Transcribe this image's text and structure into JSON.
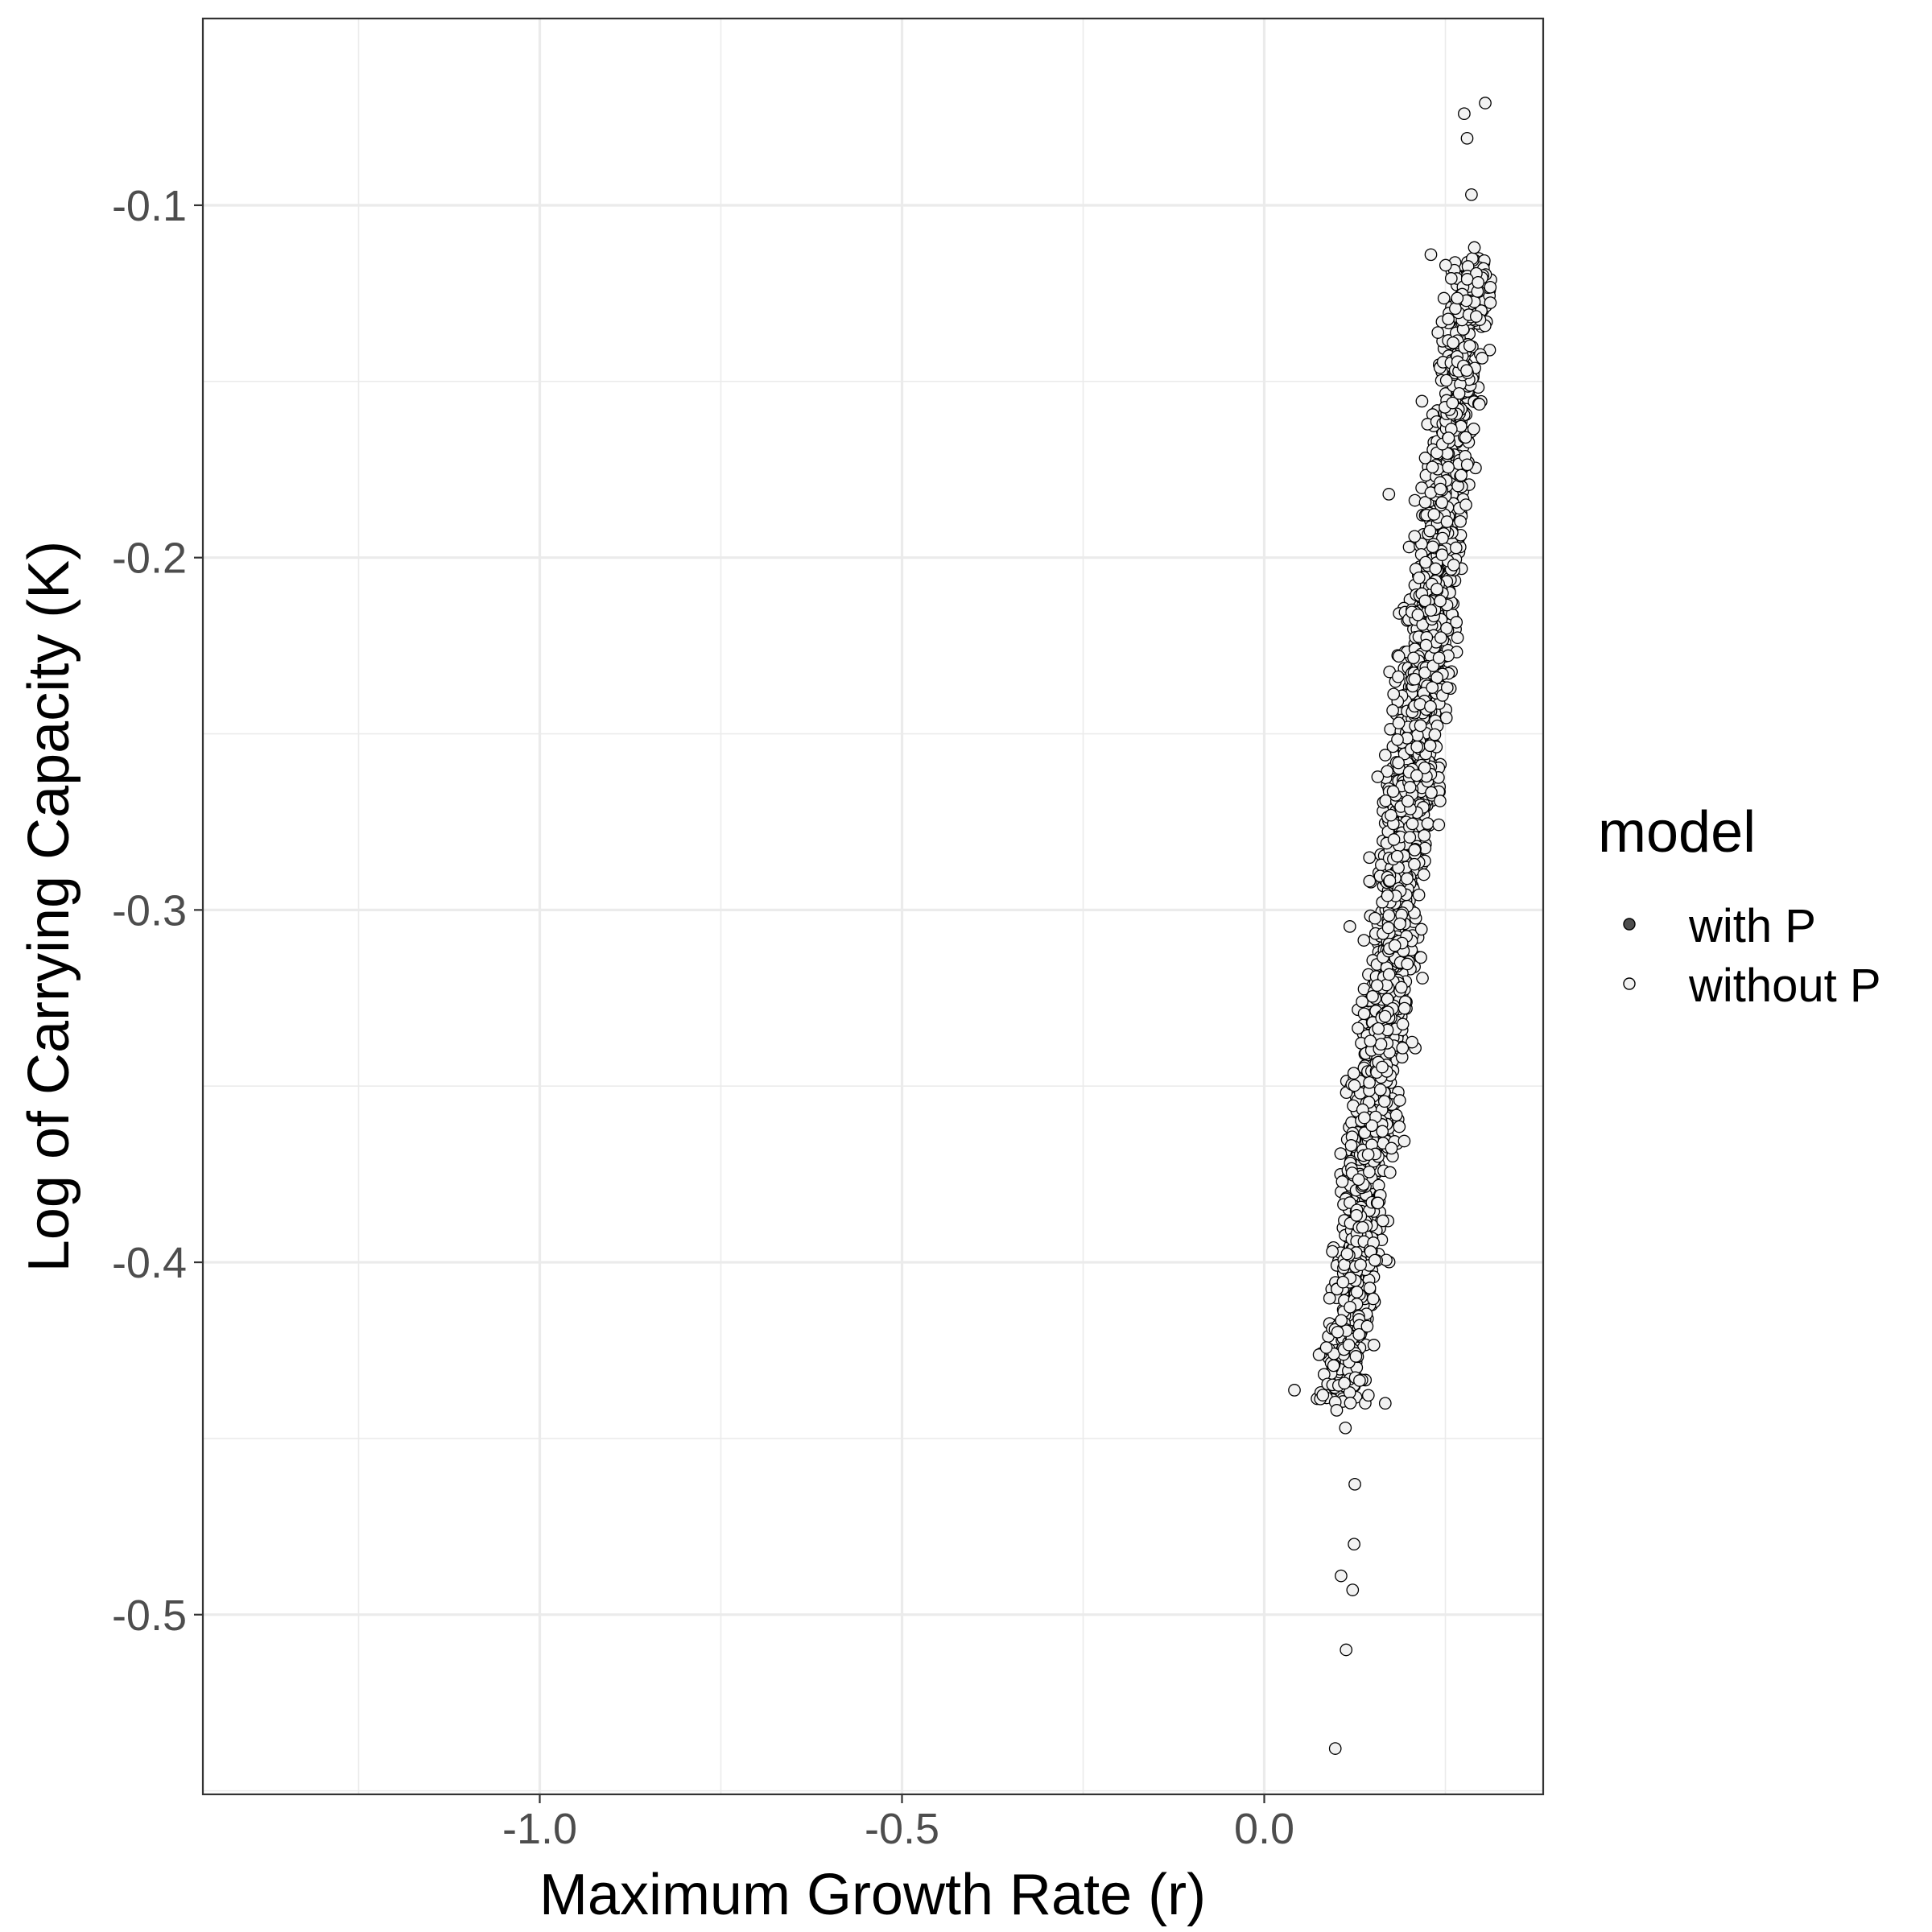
{
  "chart_data": {
    "type": "scatter",
    "title": "",
    "xlabel": "Maximum Growth Rate (r)",
    "ylabel": "Log of Carrying Capacity (K)",
    "xlim": [
      -1.465,
      0.385
    ],
    "ylim": [
      -0.551,
      -0.047
    ],
    "x_ticks": [
      -1.0,
      -0.5,
      0.0
    ],
    "x_tick_labels": [
      "-1.0",
      "-0.5",
      "0.0"
    ],
    "y_ticks": [
      -0.5,
      -0.4,
      -0.3,
      -0.2,
      -0.1
    ],
    "y_tick_labels": [
      "-0.5",
      "-0.4",
      "-0.3",
      "-0.2",
      "-0.1"
    ],
    "grid": true,
    "legend": {
      "title": "model",
      "position": "right",
      "entries": [
        {
          "label": "with P",
          "fill": "#4d4d4d"
        },
        {
          "label": "without P",
          "fill": "#f2f2f2"
        }
      ]
    },
    "series": [
      {
        "name": "without P",
        "fill": "#f2f2f2",
        "stroke": "#000000",
        "band": {
          "relation": "K = 0.142 + 1.815 * r - 0.5 approx; dense cloud",
          "n_points": 2600,
          "r_center_at_K_minus_0.44": 0.105,
          "r_center_at_K_minus_0.12": 0.285,
          "k_range": [
            -0.44,
            -0.115
          ],
          "r_spread": 0.026
        },
        "points": [
          {
            "x": 0.305,
            "y": -0.071
          },
          {
            "x": 0.276,
            "y": -0.074
          },
          {
            "x": 0.28,
            "y": -0.081
          },
          {
            "x": 0.286,
            "y": -0.097
          },
          {
            "x": 0.1,
            "y": -0.442
          },
          {
            "x": 0.112,
            "y": -0.447
          },
          {
            "x": 0.125,
            "y": -0.463
          },
          {
            "x": 0.124,
            "y": -0.48
          },
          {
            "x": 0.106,
            "y": -0.489
          },
          {
            "x": 0.122,
            "y": -0.493
          },
          {
            "x": 0.113,
            "y": -0.51
          },
          {
            "x": 0.098,
            "y": -0.538
          },
          {
            "x": 0.167,
            "y": -0.44
          },
          {
            "x": 0.172,
            "y": -0.182
          },
          {
            "x": 0.23,
            "y": -0.114
          },
          {
            "x": 0.29,
            "y": -0.112
          }
        ]
      },
      {
        "name": "with P",
        "fill": "#4d4d4d",
        "stroke": "#000000",
        "points": []
      }
    ]
  }
}
